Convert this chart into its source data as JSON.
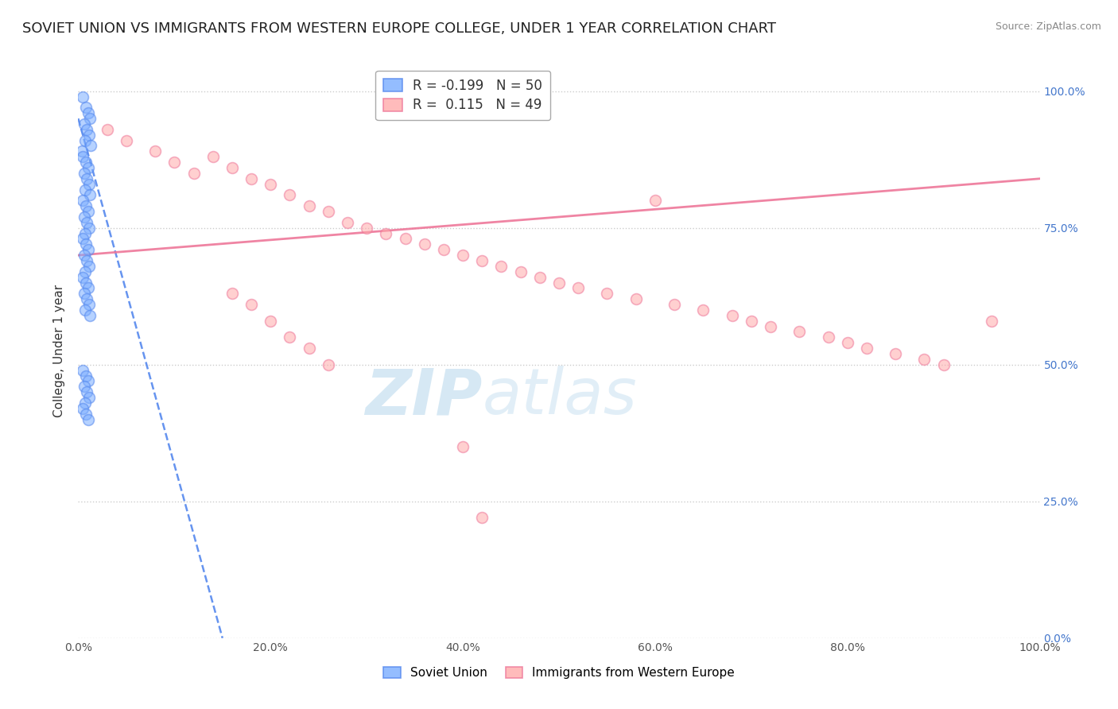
{
  "title": "SOVIET UNION VS IMMIGRANTS FROM WESTERN EUROPE COLLEGE, UNDER 1 YEAR CORRELATION CHART",
  "source": "Source: ZipAtlas.com",
  "ylabel": "College, Under 1 year",
  "x_tick_labels": [
    "0.0%",
    "20.0%",
    "40.0%",
    "60.0%",
    "80.0%",
    "100.0%"
  ],
  "y_tick_labels_right": [
    "0.0%",
    "25.0%",
    "50.0%",
    "75.0%",
    "100.0%"
  ],
  "x_range": [
    0.0,
    100.0
  ],
  "y_range": [
    0.0,
    105.0
  ],
  "legend_r_label_1": "R = -0.199",
  "legend_n_label_1": "N = 50",
  "legend_r_label_2": "R =  0.115",
  "legend_n_label_2": "N = 49",
  "watermark_zip": "ZIP",
  "watermark_atlas": "atlas",
  "blue_scatter_x": [
    0.5,
    0.8,
    1.0,
    1.2,
    0.6,
    0.9,
    1.1,
    0.7,
    1.3,
    0.4,
    0.5,
    0.8,
    1.0,
    0.6,
    0.9,
    1.1,
    0.7,
    1.2,
    0.5,
    0.8,
    1.0,
    0.6,
    0.9,
    1.1,
    0.7,
    0.5,
    0.8,
    1.0,
    0.6,
    0.9,
    1.1,
    0.7,
    0.5,
    0.8,
    1.0,
    0.6,
    0.9,
    1.1,
    0.7,
    1.2,
    0.5,
    0.8,
    1.0,
    0.6,
    0.9,
    1.1,
    0.7,
    0.5,
    0.8,
    1.0
  ],
  "blue_scatter_y": [
    99,
    97,
    96,
    95,
    94,
    93,
    92,
    91,
    90,
    89,
    88,
    87,
    86,
    85,
    84,
    83,
    82,
    81,
    80,
    79,
    78,
    77,
    76,
    75,
    74,
    73,
    72,
    71,
    70,
    69,
    68,
    67,
    66,
    65,
    64,
    63,
    62,
    61,
    60,
    59,
    49,
    48,
    47,
    46,
    45,
    44,
    43,
    42,
    41,
    40
  ],
  "pink_scatter_x": [
    3,
    5,
    8,
    10,
    12,
    14,
    16,
    18,
    20,
    22,
    24,
    26,
    28,
    30,
    32,
    34,
    36,
    38,
    40,
    42,
    44,
    46,
    48,
    50,
    52,
    55,
    58,
    60,
    62,
    65,
    68,
    70,
    72,
    75,
    78,
    80,
    82,
    85,
    88,
    90,
    16,
    18,
    20,
    22,
    24,
    26,
    40,
    42,
    95
  ],
  "pink_scatter_y": [
    93,
    91,
    89,
    87,
    85,
    88,
    86,
    84,
    83,
    81,
    79,
    78,
    76,
    75,
    74,
    73,
    72,
    71,
    70,
    69,
    68,
    67,
    66,
    65,
    64,
    63,
    62,
    80,
    61,
    60,
    59,
    58,
    57,
    56,
    55,
    54,
    53,
    52,
    51,
    50,
    63,
    61,
    58,
    55,
    53,
    50,
    35,
    22,
    58
  ],
  "blue_line_start_x": 0,
  "blue_line_start_y": 95,
  "blue_line_end_x": 15,
  "blue_line_end_y": 0,
  "pink_line_start_x": 0,
  "pink_line_start_y": 70,
  "pink_line_end_x": 100,
  "pink_line_end_y": 84,
  "blue_color": "#7aadff",
  "blue_edge_color": "#5588ee",
  "pink_color": "#ffaaaa",
  "pink_edge_color": "#ee7799",
  "pink_line_color": "#ee7799",
  "background_color": "#ffffff",
  "grid_color": "#cccccc",
  "dot_size": 100,
  "title_fontsize": 13,
  "axis_fontsize": 11,
  "tick_fontsize": 10
}
